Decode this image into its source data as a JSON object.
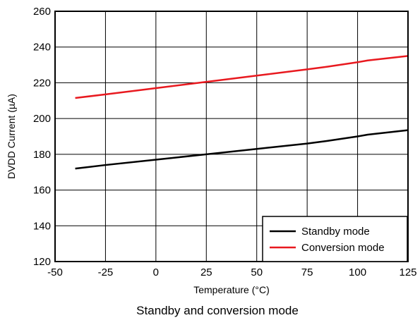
{
  "chart_data": {
    "type": "line",
    "title": "",
    "caption": "Standby and conversion mode",
    "xlabel": "Temperature (°C)",
    "ylabel": "DVDD Current (µA)",
    "xlim": [
      -50,
      125
    ],
    "ylim": [
      120,
      260
    ],
    "x_ticks": [
      -50,
      -25,
      0,
      25,
      50,
      75,
      100,
      125
    ],
    "y_ticks": [
      120,
      140,
      160,
      180,
      200,
      220,
      240,
      260
    ],
    "grid": true,
    "legend_position": "bottom-right",
    "series": [
      {
        "name": "Standby mode",
        "color": "#000000",
        "x": [
          -40,
          -25,
          0,
          25,
          50,
          75,
          85,
          100,
          105,
          125
        ],
        "y": [
          172,
          174,
          177,
          180,
          183,
          186,
          187.5,
          190,
          191,
          193.5
        ]
      },
      {
        "name": "Conversion mode",
        "color": "#e8191f",
        "x": [
          -40,
          -25,
          0,
          25,
          50,
          75,
          85,
          100,
          105,
          125
        ],
        "y": [
          211.5,
          213.5,
          217,
          220.5,
          224,
          227.5,
          229,
          231.5,
          232.5,
          235
        ]
      }
    ]
  }
}
